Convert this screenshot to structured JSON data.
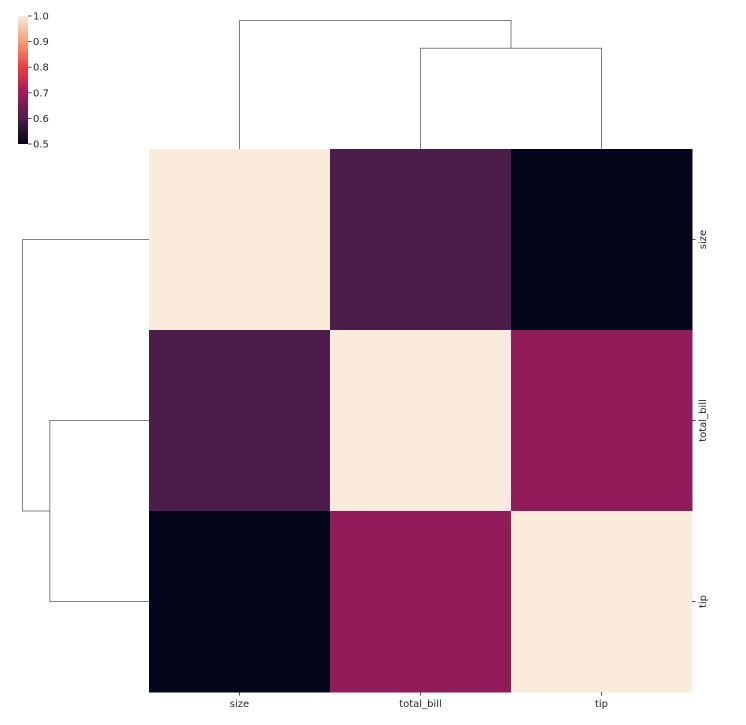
{
  "chart_data": {
    "type": "heatmap",
    "title": "",
    "row_labels": [
      "size",
      "total_bill",
      "tip"
    ],
    "col_labels": [
      "size",
      "total_bill",
      "tip"
    ],
    "values": [
      [
        1.0,
        0.6,
        0.49
      ],
      [
        0.6,
        1.0,
        0.68
      ],
      [
        0.49,
        0.68,
        1.0
      ]
    ],
    "colorbar": {
      "min": 0.5,
      "max": 1.0,
      "ticks": [
        "0.5",
        "0.6",
        "0.7",
        "0.8",
        "0.9",
        "1.0"
      ],
      "tick_values": [
        0.5,
        0.6,
        0.7,
        0.8,
        0.9,
        1.0
      ],
      "placement": "top-left"
    },
    "colormap": [
      "#03051a",
      "#4c1d4b",
      "#a11a5b",
      "#e83f3f",
      "#f69c73",
      "#faebdd"
    ],
    "dendrogram_color": "#808080",
    "col_dendrogram": {
      "inner_merge": {
        "cols": [
          1,
          2
        ],
        "height": 0.4
      },
      "outer_merge": {
        "height": 0.51
      }
    },
    "row_dendrogram": {
      "inner_merge": {
        "rows": [
          1,
          2
        ],
        "height": 0.4
      },
      "outer_merge": {
        "height": 0.51
      }
    }
  }
}
